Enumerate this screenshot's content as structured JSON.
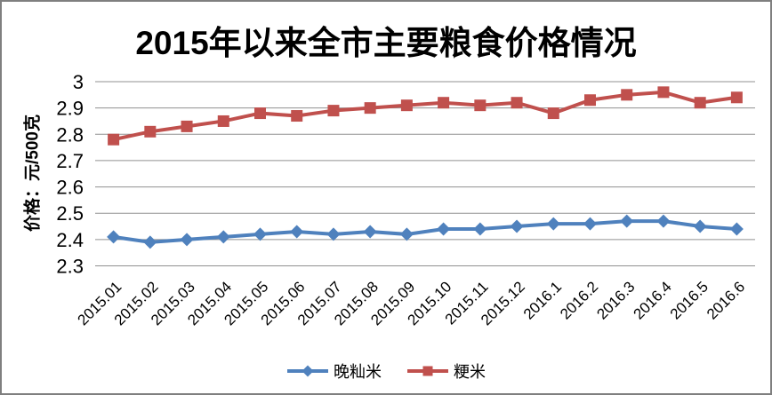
{
  "title": "2015年以来全市主要粮食价格情况",
  "chart_data": {
    "type": "line",
    "title": "2015年以来全市主要粮食价格情况",
    "xlabel": "",
    "ylabel": "价格：元/500克",
    "ylim": [
      2.3,
      3.0
    ],
    "ytick_step": 0.1,
    "yticks": [
      "3",
      "2.9",
      "2.8",
      "2.7",
      "2.6",
      "2.5",
      "2.4",
      "2.3"
    ],
    "grid": true,
    "legend_position": "bottom",
    "categories": [
      "2015.01",
      "2015.02",
      "2015.03",
      "2015.04",
      "2015.05",
      "2015.06",
      "2015.07",
      "2015.08",
      "2015.09",
      "2015.10",
      "2015.11",
      "2015.12",
      "2016.1",
      "2016.2",
      "2016.3",
      "2016.4",
      "2016.5",
      "2016.6"
    ],
    "series": [
      {
        "name": "晚籼米",
        "color": "#4F81BD",
        "marker": "diamond",
        "values": [
          2.41,
          2.39,
          2.4,
          2.41,
          2.42,
          2.43,
          2.42,
          2.43,
          2.42,
          2.44,
          2.44,
          2.45,
          2.46,
          2.46,
          2.47,
          2.47,
          2.45,
          2.44
        ]
      },
      {
        "name": "粳米",
        "color": "#C0504D",
        "marker": "square",
        "values": [
          2.78,
          2.81,
          2.83,
          2.85,
          2.88,
          2.87,
          2.89,
          2.9,
          2.91,
          2.92,
          2.91,
          2.92,
          2.88,
          2.93,
          2.95,
          2.96,
          2.92,
          2.94
        ]
      }
    ]
  },
  "colors": {
    "background": "#FFFFFF",
    "frame_border": "#7F7F7F",
    "gridline": "#909090",
    "text": "#000000"
  }
}
